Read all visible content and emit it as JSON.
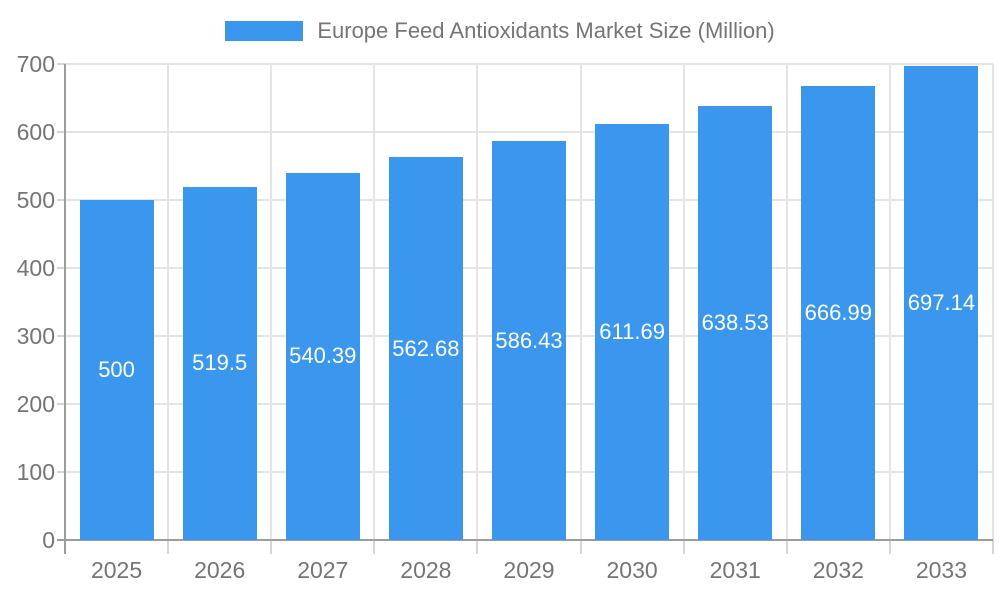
{
  "chart_data": {
    "type": "bar",
    "title": "Europe Feed Antioxidants Market Size (Million)",
    "legend_position": "top",
    "categories": [
      "2025",
      "2026",
      "2027",
      "2028",
      "2029",
      "2030",
      "2031",
      "2032",
      "2033"
    ],
    "series": [
      {
        "name": "Europe Feed Antioxidants Market Size (Million)",
        "values": [
          500,
          519.5,
          540.39,
          562.68,
          586.43,
          611.69,
          638.53,
          666.99,
          697.14
        ]
      }
    ],
    "value_labels": [
      "500",
      "519.5",
      "540.39",
      "562.68",
      "586.43",
      "611.69",
      "638.53",
      "666.99",
      "697.14"
    ],
    "xlabel": "",
    "ylabel": "",
    "ylim": [
      0,
      700
    ],
    "ytick_step": 100,
    "yticks": [
      "0",
      "100",
      "200",
      "300",
      "400",
      "500",
      "600",
      "700"
    ],
    "grid": true,
    "colors": {
      "bar": "#3b97ee",
      "grid": "#e4e4e4",
      "tick": "#d6d6d6",
      "axis": "#9c9c9c",
      "text": "#757575",
      "value_text": "#ffffff",
      "background": "#ffffff"
    }
  }
}
